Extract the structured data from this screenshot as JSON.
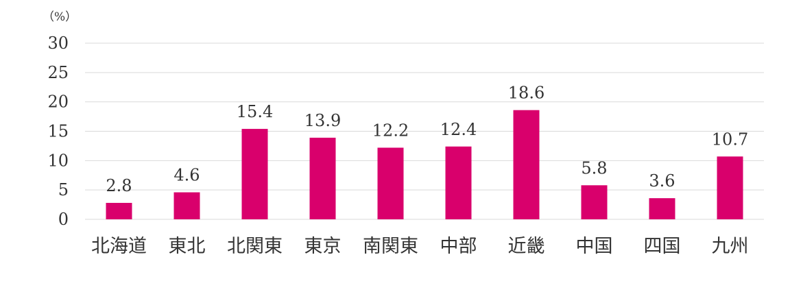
{
  "chart_data": {
    "type": "bar",
    "unit_label": "（%）",
    "categories": [
      "北海道",
      "東北",
      "北関東",
      "東京",
      "南関東",
      "中部",
      "近畿",
      "中国",
      "四国",
      "九州"
    ],
    "values": [
      2.8,
      4.6,
      15.4,
      13.9,
      12.2,
      12.4,
      18.6,
      5.8,
      3.6,
      10.7
    ],
    "value_labels": [
      "2.8",
      "4.6",
      "15.4",
      "13.9",
      "12.2",
      "12.4",
      "18.6",
      "5.8",
      "3.6",
      "10.7"
    ],
    "yticks": [
      0,
      5,
      10,
      15,
      20,
      25,
      30
    ],
    "ylim": [
      0,
      30
    ],
    "grid": true,
    "bar_color": "#D9006C",
    "title": "",
    "xlabel": "",
    "ylabel": ""
  }
}
